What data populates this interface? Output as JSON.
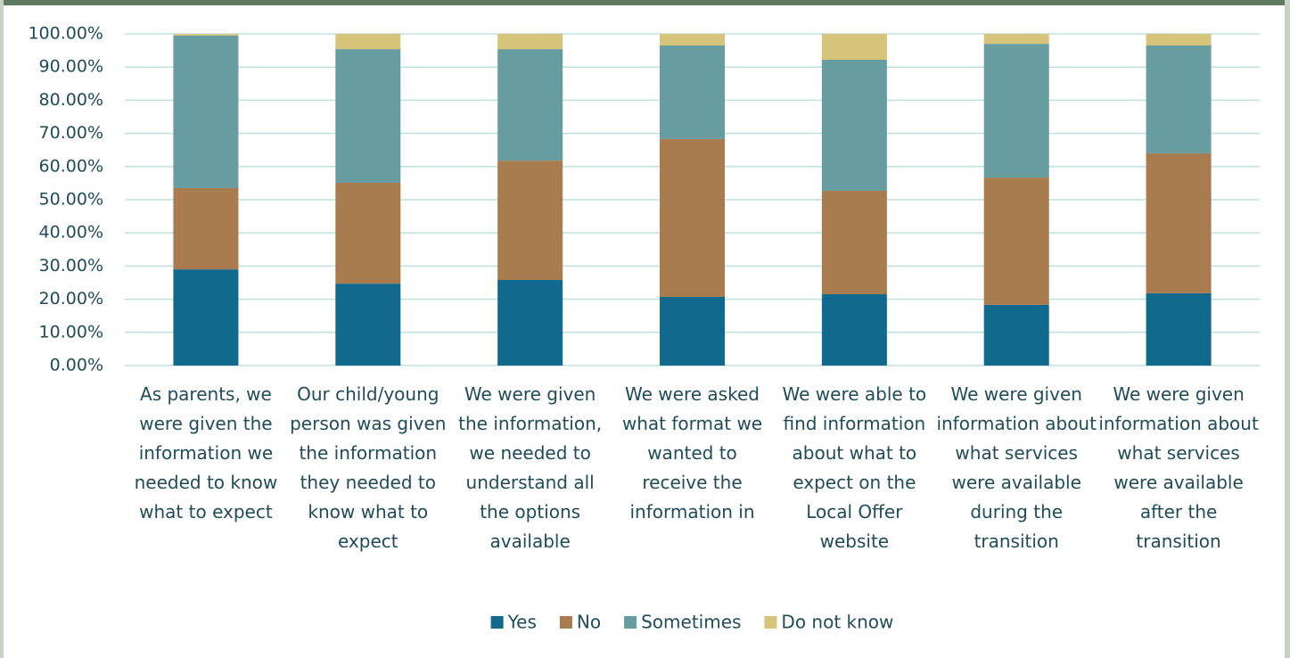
{
  "chart_data": {
    "type": "stacked_bar",
    "categories": [
      "As parents, we were given the information we needed to know what to expect",
      "Our child/young person was given the information they needed to know what to expect",
      "We were given the information, we needed to understand all the options available",
      "We were asked what format we wanted to receive the information in",
      "We were able to find information about what to expect on the Local Offer website",
      "We were given information about what services were available during the transition",
      "We were given information about what services were available after the transition"
    ],
    "series": [
      {
        "name": "Yes",
        "color": "#12698e",
        "values": [
          29.0,
          24.7,
          25.8,
          20.7,
          21.5,
          18.3,
          21.8
        ]
      },
      {
        "name": "No",
        "color": "#a87c4f",
        "values": [
          24.5,
          30.4,
          36.0,
          47.6,
          31.2,
          38.4,
          42.2
        ]
      },
      {
        "name": "Sometimes",
        "color": "#679ca0",
        "values": [
          46.0,
          40.3,
          33.6,
          28.2,
          39.5,
          40.3,
          32.5
        ]
      },
      {
        "name": "Do not know",
        "color": "#d6c47a",
        "values": [
          0.5,
          4.6,
          4.6,
          3.5,
          7.8,
          3.0,
          3.5
        ]
      }
    ],
    "ylim": [
      0,
      100
    ],
    "yticks": [
      {
        "value": 0,
        "label": "0.00%"
      },
      {
        "value": 10,
        "label": "10.00%"
      },
      {
        "value": 20,
        "label": "20.00%"
      },
      {
        "value": 30,
        "label": "30.00%"
      },
      {
        "value": 40,
        "label": "40.00%"
      },
      {
        "value": 50,
        "label": "50.00%"
      },
      {
        "value": 60,
        "label": "60.00%"
      },
      {
        "value": 70,
        "label": "70.00%"
      },
      {
        "value": 80,
        "label": "80.00%"
      },
      {
        "value": 90,
        "label": "90.00%"
      },
      {
        "value": 100,
        "label": "100.00%"
      }
    ],
    "grid": true,
    "legend": "bottom"
  }
}
